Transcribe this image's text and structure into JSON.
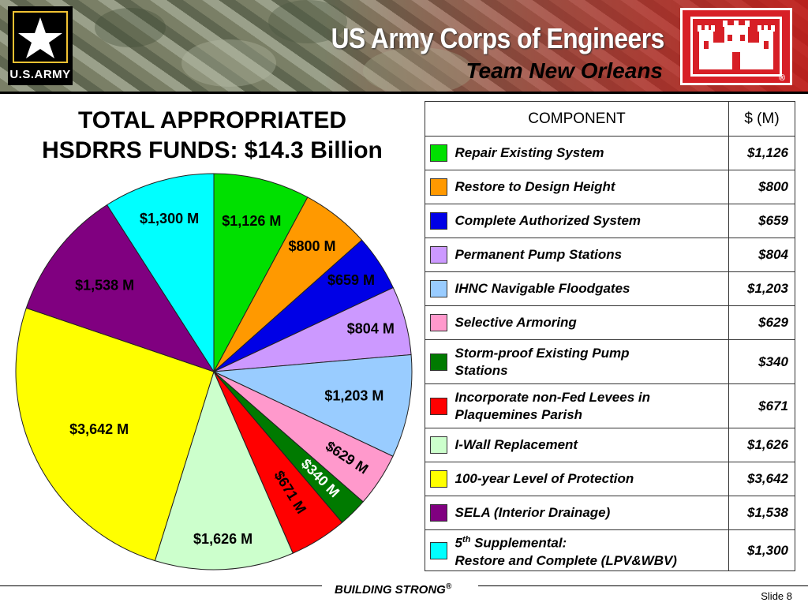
{
  "header": {
    "army_label": "U.S.ARMY",
    "org_title": "US Army Corps of Engineers",
    "team_title": "Team New Orleans",
    "registered_mark": "®"
  },
  "chart_title": {
    "line1": "TOTAL APPROPRIATED",
    "line2": "HSDRRS FUNDS: $14.3 Billion"
  },
  "table": {
    "col_component": "COMPONENT",
    "col_value": "$ (M)",
    "rows": [
      {
        "name": "Repair Existing System",
        "value": "$1,126",
        "color": "#00e000"
      },
      {
        "name": "Restore to Design Height",
        "value": "$800",
        "color": "#ff9900"
      },
      {
        "name": "Complete Authorized System",
        "value": "$659",
        "color": "#0000e6"
      },
      {
        "name": "Permanent Pump Stations",
        "value": "$804",
        "color": "#cc99ff"
      },
      {
        "name": "IHNC Navigable Floodgates",
        "value": "$1,203",
        "color": "#99ccff"
      },
      {
        "name": "Selective Armoring",
        "value": "$629",
        "color": "#ff99cc"
      },
      {
        "name": "Storm-proof Existing Pump",
        "name2": "Stations",
        "value": "$340",
        "color": "#007a00"
      },
      {
        "name": "Incorporate non-Fed Levees in",
        "name2": "Plaquemines Parish",
        "value": "$671",
        "color": "#ff0000"
      },
      {
        "name": "I-Wall Replacement",
        "value": "$1,626",
        "color": "#ccffcc"
      },
      {
        "name": "100-year Level of Protection",
        "value": "$3,642",
        "color": "#ffff00"
      },
      {
        "name": "SELA (Interior Drainage)",
        "value": "$1,538",
        "color": "#800080"
      },
      {
        "name": "5",
        "name_sup": "th",
        "name_rest": " Supplemental:",
        "name2": "Restore and Complete (LPV&WBV)",
        "value": "$1,300",
        "color": "#00ffff"
      }
    ]
  },
  "chart_data": {
    "type": "pie",
    "title": "TOTAL APPROPRIATED HSDRRS FUNDS: $14.3 Billion",
    "slices": [
      {
        "label": "$1,126 M",
        "value": 1126,
        "color": "#00e000"
      },
      {
        "label": "$800 M",
        "value": 800,
        "color": "#ff9900"
      },
      {
        "label": "$659 M",
        "value": 659,
        "color": "#0000e6"
      },
      {
        "label": "$804 M",
        "value": 804,
        "color": "#cc99ff"
      },
      {
        "label": "$1,203 M",
        "value": 1203,
        "color": "#99ccff"
      },
      {
        "label": "$629 M",
        "value": 629,
        "color": "#ff99cc"
      },
      {
        "label": "$340 M",
        "value": 340,
        "color": "#007a00"
      },
      {
        "label": "$671 M",
        "value": 671,
        "color": "#ff0000"
      },
      {
        "label": "$1,626 M",
        "value": 1626,
        "color": "#ccffcc"
      },
      {
        "label": "$3,642 M",
        "value": 3642,
        "color": "#ffff00"
      },
      {
        "label": "$1,538 M",
        "value": 1538,
        "color": "#800080"
      },
      {
        "label": "$1,300 M",
        "value": 1300,
        "color": "#00ffff"
      }
    ]
  },
  "footer": {
    "tagline": "BUILDING STRONG",
    "tagline_mark": "®",
    "slide": "Slide 8"
  }
}
